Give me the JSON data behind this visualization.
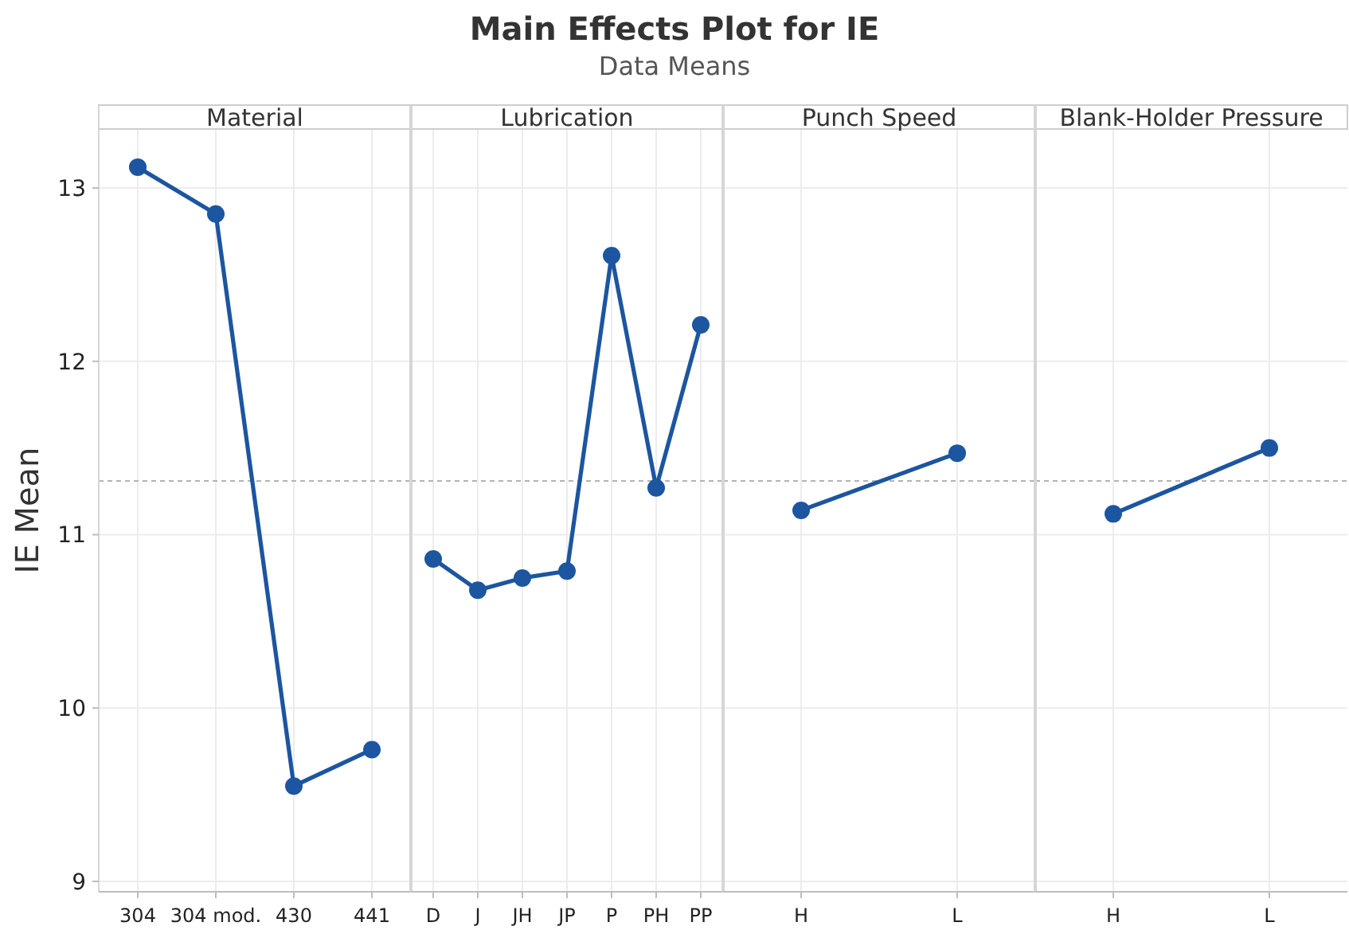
{
  "chart_data": [
    {
      "type": "line",
      "xlabel": "Material",
      "ylabel": "IE Mean",
      "categories": [
        "304",
        "304 mod.",
        "430",
        "441"
      ],
      "values": [
        13.12,
        12.85,
        9.55,
        9.76
      ],
      "color": "#1c55a0",
      "ylim": [
        8.94,
        13.34
      ],
      "yticks": [
        9,
        10,
        11,
        12,
        13
      ],
      "grid": true,
      "marker": "circle",
      "line_style": "solid",
      "ref_lines": [
        {
          "axis": "y",
          "value": 11.31,
          "color": "#b4b4b4",
          "line_style": "dashed"
        }
      ]
    },
    {
      "type": "line",
      "title": "Main Effects Plot for IE",
      "subtitle": "Data Means",
      "xlabel": "Lubrication",
      "categories": [
        "D",
        "J",
        "JH",
        "JP",
        "P",
        "PH",
        "PP"
      ],
      "values": [
        10.86,
        10.68,
        10.75,
        10.79,
        12.61,
        11.27,
        12.21
      ],
      "color": "#1c55a0",
      "ylim": [
        8.94,
        13.34
      ],
      "yticks": [
        9,
        10,
        11,
        12,
        13
      ],
      "grid": true,
      "marker": "circle",
      "line_style": "solid",
      "tick_labels": "x",
      "ref_lines": [
        {
          "axis": "y",
          "value": 11.31,
          "color": "#b4b4b4",
          "line_style": "dashed"
        }
      ]
    },
    {
      "type": "line",
      "xlabel": "Punch Speed",
      "categories": [
        "H",
        "L"
      ],
      "values": [
        11.14,
        11.47
      ],
      "color": "#1c55a0",
      "ylim": [
        8.94,
        13.34
      ],
      "yticks": [
        9,
        10,
        11,
        12,
        13
      ],
      "grid": true,
      "marker": "circle",
      "line_style": "solid",
      "tick_labels": "x",
      "ref_lines": [
        {
          "axis": "y",
          "value": 11.31,
          "color": "#b4b4b4",
          "line_style": "dashed"
        }
      ]
    },
    {
      "type": "line",
      "xlabel": "Blank-Holder Pressure",
      "categories": [
        "H",
        "L"
      ],
      "values": [
        11.12,
        11.5
      ],
      "color": "#1c55a0",
      "ylim": [
        8.94,
        13.34
      ],
      "yticks": [
        9,
        10,
        11,
        12,
        13
      ],
      "grid": true,
      "marker": "circle",
      "line_style": "solid",
      "tick_labels": "x",
      "ref_lines": [
        {
          "axis": "y",
          "value": 11.31,
          "color": "#b4b4b4",
          "line_style": "dashed"
        }
      ]
    }
  ]
}
